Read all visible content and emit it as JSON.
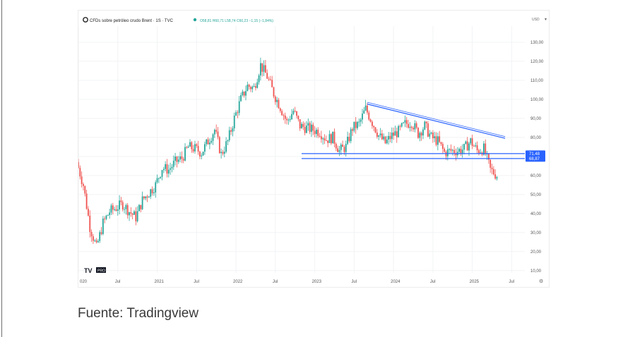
{
  "chart_data": {
    "type": "candlestick",
    "legend": {
      "symbol_title": "CFDs sobre petróleo crudo Brent · 1S · TVC",
      "ohlc": "O58,81 H60,71 L58,74 C60,23 −1,15 (−1,84%)"
    },
    "currency": "USD",
    "y_axis": {
      "ticks": [
        "130,00",
        "120,00",
        "110,00",
        "100,00",
        "90,00",
        "80,00",
        "70,00",
        "60,00",
        "50,00",
        "40,00",
        "30,00",
        "20,00",
        "10,00"
      ],
      "ylim": [
        8.8,
        138.5
      ]
    },
    "x_axis": {
      "ticks": [
        "020",
        "Jul",
        "2021",
        "Jul",
        "2022",
        "Jul",
        "2023",
        "Jul",
        "2024",
        "Jul",
        "2025",
        "Jul"
      ],
      "range": [
        "2020-01",
        "2025-09"
      ]
    },
    "price_labels": [
      {
        "text": "71,48",
        "value": 71.48
      },
      {
        "text": "68,87",
        "value": 68.87
      }
    ],
    "trendline": {
      "from": {
        "date": "2023-09",
        "price": 97.5
      },
      "to": {
        "date": "2025-06",
        "price": 79.5
      }
    },
    "horizontal_lines": [
      71.48,
      68.87
    ],
    "colors": {
      "up": "#26a69a",
      "down": "#ef5350",
      "lines": "#2962ff",
      "label_bg": "#2962ff"
    },
    "series": [
      {
        "t": "2020-01",
        "c": 67
      },
      {
        "t": "2020-02",
        "c": 55
      },
      {
        "t": "2020-03",
        "c": 33
      },
      {
        "t": "2020-04",
        "c": 22
      },
      {
        "t": "2020-05",
        "c": 35
      },
      {
        "t": "2020-06",
        "c": 41
      },
      {
        "t": "2020-07",
        "c": 43
      },
      {
        "t": "2020-08",
        "c": 45
      },
      {
        "t": "2020-09",
        "c": 41
      },
      {
        "t": "2020-10",
        "c": 38
      },
      {
        "t": "2020-11",
        "c": 47
      },
      {
        "t": "2020-12",
        "c": 51
      },
      {
        "t": "2021-01",
        "c": 55
      },
      {
        "t": "2021-02",
        "c": 64
      },
      {
        "t": "2021-03",
        "c": 63
      },
      {
        "t": "2021-04",
        "c": 67
      },
      {
        "t": "2021-05",
        "c": 69
      },
      {
        "t": "2021-06",
        "c": 75
      },
      {
        "t": "2021-07",
        "c": 74
      },
      {
        "t": "2021-08",
        "c": 72
      },
      {
        "t": "2021-09",
        "c": 78
      },
      {
        "t": "2021-10",
        "c": 84
      },
      {
        "t": "2021-11",
        "c": 71
      },
      {
        "t": "2021-12",
        "c": 78
      },
      {
        "t": "2022-01",
        "c": 90
      },
      {
        "t": "2022-02",
        "c": 100
      },
      {
        "t": "2022-03",
        "c": 107
      },
      {
        "t": "2022-04",
        "c": 106
      },
      {
        "t": "2022-05",
        "c": 118
      },
      {
        "t": "2022-06",
        "c": 112
      },
      {
        "t": "2022-07",
        "c": 103
      },
      {
        "t": "2022-08",
        "c": 96
      },
      {
        "t": "2022-09",
        "c": 88
      },
      {
        "t": "2022-10",
        "c": 94
      },
      {
        "t": "2022-11",
        "c": 86
      },
      {
        "t": "2022-12",
        "c": 85
      },
      {
        "t": "2023-01",
        "c": 84
      },
      {
        "t": "2023-02",
        "c": 83
      },
      {
        "t": "2023-03",
        "c": 79
      },
      {
        "t": "2023-04",
        "c": 80
      },
      {
        "t": "2023-05",
        "c": 73
      },
      {
        "t": "2023-06",
        "c": 75
      },
      {
        "t": "2023-07",
        "c": 85
      },
      {
        "t": "2023-08",
        "c": 87
      },
      {
        "t": "2023-09",
        "c": 95
      },
      {
        "t": "2023-10",
        "c": 88
      },
      {
        "t": "2023-11",
        "c": 81
      },
      {
        "t": "2023-12",
        "c": 77
      },
      {
        "t": "2024-01",
        "c": 81
      },
      {
        "t": "2024-02",
        "c": 83
      },
      {
        "t": "2024-03",
        "c": 87
      },
      {
        "t": "2024-04",
        "c": 88
      },
      {
        "t": "2024-05",
        "c": 82
      },
      {
        "t": "2024-06",
        "c": 86
      },
      {
        "t": "2024-07",
        "c": 80
      },
      {
        "t": "2024-08",
        "c": 78
      },
      {
        "t": "2024-09",
        "c": 72
      },
      {
        "t": "2024-10",
        "c": 73
      },
      {
        "t": "2024-11",
        "c": 73
      },
      {
        "t": "2024-12",
        "c": 74
      },
      {
        "t": "2025-01",
        "c": 78
      },
      {
        "t": "2025-02",
        "c": 73
      },
      {
        "t": "2025-03",
        "c": 74
      },
      {
        "t": "2025-04",
        "c": 63
      },
      {
        "t": "2025-05",
        "c": 60
      }
    ]
  },
  "caption": "Fuente: Tradingview",
  "tv_logo": "TV",
  "pro_badge": "PRO"
}
